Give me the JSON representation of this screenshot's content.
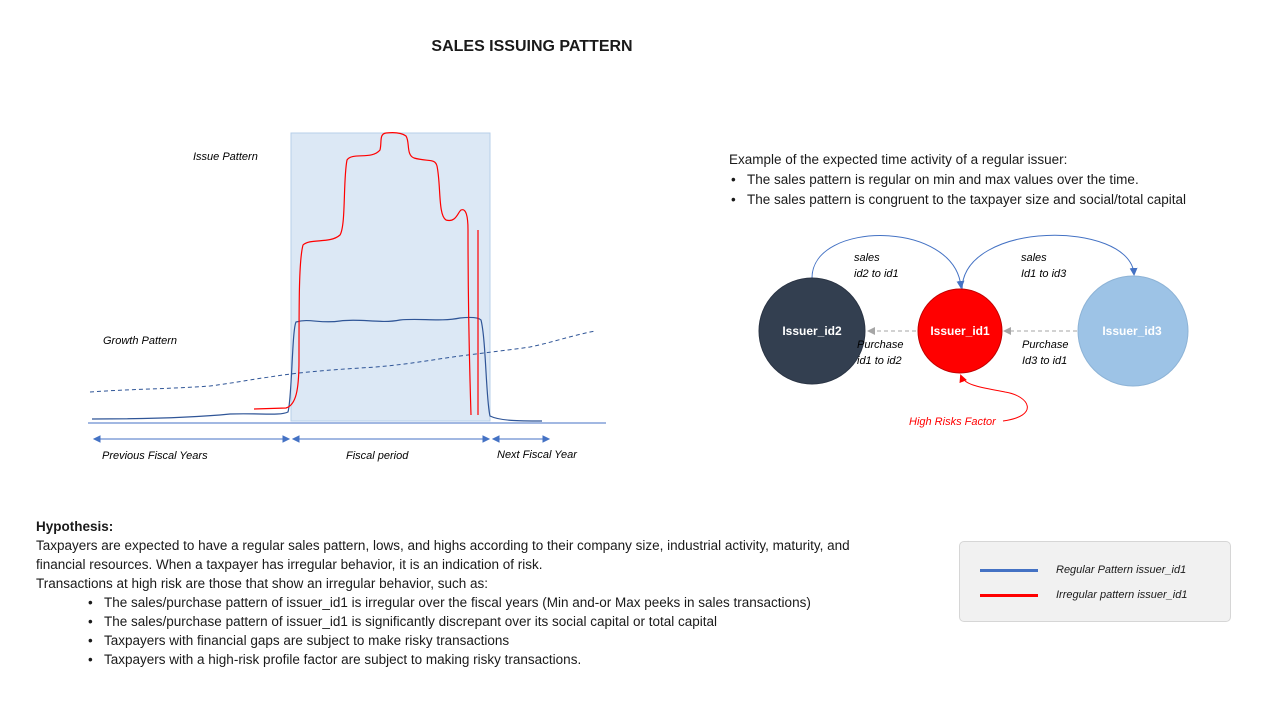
{
  "title": "SALES ISSUING PATTERN",
  "chart": {
    "label_issue": "Issue Pattern",
    "label_growth": "Growth Pattern",
    "label_prev": "Previous Fiscal Years",
    "label_fiscal": "Fiscal period",
    "label_next": "Next Fiscal Year"
  },
  "intro": {
    "heading": "Example of the expected time activity of a regular issuer:",
    "bullets": [
      "The sales pattern is regular on min and max values over the time.",
      "The sales pattern is congruent to the taxpayer size and social/total capital"
    ]
  },
  "network": {
    "nodes": [
      {
        "name": "Issuer_id2",
        "color": "#333f50"
      },
      {
        "name": "Issuer_id1",
        "color": "#ff0000"
      },
      {
        "name": "Issuer_id3",
        "color": "#9dc3e6"
      }
    ],
    "sales_left": [
      "sales",
      "id2 to id1"
    ],
    "sales_right": [
      "sales",
      "Id1 to id3"
    ],
    "purchase_left": [
      "Purchase",
      "id1 to id2"
    ],
    "purchase_right": [
      "Purchase",
      "Id3 to id1"
    ],
    "risk_label": "High Risks Factor"
  },
  "hypothesis": {
    "heading": "Hypothesis:",
    "para1": "Taxpayers are expected to have a regular sales pattern, lows, and highs according to their company size, industrial activity, maturity, and financial resources. When a taxpayer has irregular behavior, it is an indication of risk.",
    "para2": "Transactions at high risk are those that show an irregular behavior, such as:",
    "bullets": [
      "The sales/purchase pattern of issuer_id1 is irregular over the fiscal years (Min and-or Max peeks in sales transactions)",
      "The sales/purchase pattern of issuer_id1 is significantly discrepant over its social capital or total capital",
      "Taxpayers with financial gaps are subject to make risky transactions",
      "Taxpayers with a high-risk profile factor are subject to making risky transactions."
    ]
  },
  "legend": {
    "items": [
      {
        "label": "Regular Pattern  issuer_id1",
        "color": "#4472c4"
      },
      {
        "label": "Irregular  pattern issuer_id1",
        "color": "#ff0000"
      }
    ]
  }
}
